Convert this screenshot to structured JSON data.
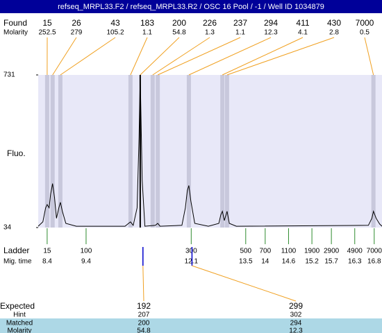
{
  "chart_data": {
    "type": "line",
    "title": "refseq_MRPL33.F2 / refseq_MRPL33.R2 / OSC 16 Pool / -1 / Well ID 1034879",
    "ylabel": "Fluo.",
    "xlim": [
      8.17,
      17.0
    ],
    "ylim": [
      34,
      731
    ],
    "yticks": [
      34,
      731
    ],
    "color": "#000000",
    "x": [
      8.17,
      8.29,
      8.36,
      8.4,
      8.45,
      8.49,
      8.54,
      8.59,
      8.64,
      8.7,
      8.74,
      8.79,
      8.88,
      9.15,
      10.4,
      10.49,
      10.54,
      10.61,
      10.71,
      10.76,
      10.79,
      10.84,
      10.91,
      11.18,
      11.24,
      11.3,
      11.86,
      11.95,
      12.0,
      12.04,
      12.09,
      12.19,
      12.54,
      12.81,
      12.86,
      12.9,
      12.95,
      13.02,
      13.08,
      13.26,
      16.65,
      16.74,
      16.78,
      16.85,
      16.94,
      17.0
    ],
    "values": [
      40,
      60,
      124,
      139,
      124,
      187,
      235,
      171,
      76,
      124,
      149,
      108,
      53,
      40,
      40,
      53,
      60,
      44,
      124,
      444,
      731,
      251,
      40,
      44,
      53,
      40,
      44,
      124,
      203,
      226,
      155,
      53,
      40,
      53,
      92,
      108,
      66,
      108,
      53,
      40,
      44,
      76,
      108,
      76,
      50,
      40
    ],
    "found": {
      "label": "Found",
      "molarity_label": "Molarity",
      "selected": 4,
      "peaks": [
        {
          "size": 15,
          "molarity": 252.5,
          "time": 8.4
        },
        {
          "size": 26,
          "molarity": 279,
          "time": 8.54
        },
        {
          "size": 43,
          "molarity": 105.2,
          "time": 8.74
        },
        {
          "size": 183,
          "molarity": 1.1,
          "time": 10.54
        },
        {
          "size": 200,
          "molarity": 54.8,
          "time": 10.79
        },
        {
          "size": 226,
          "molarity": 1.3,
          "time": 11.11
        },
        {
          "size": 237,
          "molarity": 1.1,
          "time": 11.24
        },
        {
          "size": 294,
          "molarity": 12.3,
          "time": 12.04
        },
        {
          "size": 411,
          "molarity": 4.1,
          "time": 12.9
        },
        {
          "size": 430,
          "molarity": 2.8,
          "time": 13.02
        },
        {
          "size": 7000,
          "molarity": 0.5,
          "time": 16.78
        }
      ]
    },
    "ladder": {
      "label": "Ladder",
      "time_label": "Mig. time",
      "peaks": [
        {
          "size": 15,
          "time": 8.4
        },
        {
          "size": 100,
          "time": 9.4
        },
        {
          "size": 300,
          "time": 12.1
        },
        {
          "size": 500,
          "time": 13.5
        },
        {
          "size": 700,
          "time": 14
        },
        {
          "size": 1100,
          "time": 14.6
        },
        {
          "size": 1900,
          "time": 15.2
        },
        {
          "size": 2900,
          "time": 15.7
        },
        {
          "size": 4900,
          "time": 16.3
        },
        {
          "size": 7000,
          "time": 16.8
        }
      ]
    },
    "expected": {
      "row_labels": [
        "Expected",
        "Hint",
        "Matched",
        "Molarity"
      ],
      "items": [
        {
          "values": [
            192,
            207,
            200,
            54.8
          ],
          "time": 10.86
        },
        {
          "values": [
            299,
            302,
            294,
            12.3
          ],
          "time": 12.12
        }
      ]
    }
  }
}
